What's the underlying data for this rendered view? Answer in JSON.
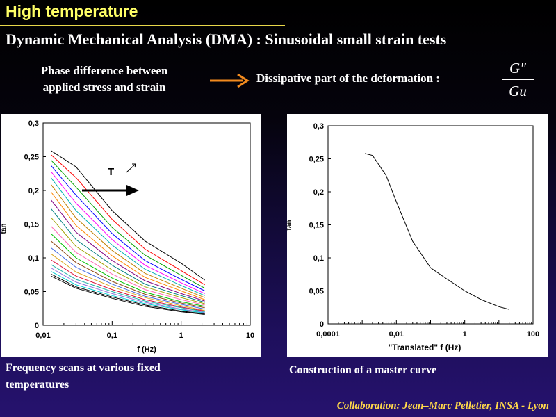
{
  "title": "High temperature",
  "subtitle": "Dynamic Mechanical Analysis (DMA) : Sinusoidal small strain tests",
  "phase_text": {
    "line1": "Phase difference between",
    "line2": "applied stress and strain"
  },
  "dissipative_text": "Dissipative part of the deformation :",
  "fraction": {
    "numerator": "G\"",
    "denominator": "Gu"
  },
  "left_chart": {
    "ylabel": "tan",
    "xlabel": "f (Hz)",
    "xticks": [
      "0,01",
      "0,1",
      "1",
      "10"
    ],
    "yticks": [
      "0",
      "0,05",
      "0,1",
      "0,15",
      "0,2",
      "0,25",
      "0,3"
    ],
    "annotation": "T"
  },
  "right_chart": {
    "ylabel": "tan",
    "xlabel": "\"Translated\" f (Hz)",
    "xticks": [
      "0,0001",
      "0,01",
      "1",
      "100"
    ],
    "yticks": [
      "0",
      "0,05",
      "0,1",
      "0,15",
      "0,2",
      "0,25",
      "0,3"
    ]
  },
  "captions": {
    "left_line1": "Frequency scans at various fixed",
    "left_line2": "temperatures",
    "right": "Construction of a master curve"
  },
  "collaboration": "Collaboration: Jean–Marc Pelletier, INSA - Lyon",
  "chart_data": [
    {
      "type": "line",
      "x_scale": "log",
      "xlim": [
        0.01,
        10
      ],
      "ylim": [
        0,
        0.3
      ],
      "xlabel": "f (Hz)",
      "ylabel": "tan",
      "x": [
        0.013,
        0.03,
        0.1,
        0.3,
        1,
        2.2
      ],
      "series": [
        {
          "values": [
            0.259,
            0.235,
            0.17,
            0.125,
            0.092,
            0.067
          ]
        },
        {
          "values": [
            0.253,
            0.219,
            0.157,
            0.113,
            0.081,
            0.06
          ]
        },
        {
          "values": [
            0.245,
            0.205,
            0.145,
            0.104,
            0.074,
            0.055
          ]
        },
        {
          "values": [
            0.237,
            0.193,
            0.136,
            0.096,
            0.068,
            0.051
          ]
        },
        {
          "values": [
            0.228,
            0.181,
            0.127,
            0.089,
            0.063,
            0.047
          ]
        },
        {
          "values": [
            0.219,
            0.17,
            0.119,
            0.083,
            0.059,
            0.044
          ]
        },
        {
          "values": [
            0.209,
            0.159,
            0.111,
            0.077,
            0.055,
            0.041
          ]
        },
        {
          "values": [
            0.198,
            0.148,
            0.103,
            0.071,
            0.051,
            0.038
          ]
        },
        {
          "values": [
            0.186,
            0.138,
            0.096,
            0.066,
            0.047,
            0.036
          ]
        },
        {
          "values": [
            0.173,
            0.127,
            0.089,
            0.061,
            0.044,
            0.034
          ]
        },
        {
          "values": [
            0.16,
            0.117,
            0.082,
            0.057,
            0.041,
            0.032
          ]
        },
        {
          "values": [
            0.147,
            0.108,
            0.076,
            0.053,
            0.038,
            0.03
          ]
        },
        {
          "values": [
            0.136,
            0.1,
            0.07,
            0.049,
            0.035,
            0.028
          ]
        },
        {
          "values": [
            0.125,
            0.093,
            0.065,
            0.046,
            0.033,
            0.026
          ]
        },
        {
          "values": [
            0.115,
            0.086,
            0.061,
            0.043,
            0.031,
            0.024
          ]
        },
        {
          "values": [
            0.106,
            0.079,
            0.057,
            0.041,
            0.029,
            0.022
          ]
        },
        {
          "values": [
            0.097,
            0.073,
            0.053,
            0.038,
            0.027,
            0.021
          ]
        },
        {
          "values": [
            0.09,
            0.068,
            0.05,
            0.036,
            0.026,
            0.02
          ]
        },
        {
          "values": [
            0.085,
            0.064,
            0.047,
            0.034,
            0.024,
            0.019
          ]
        },
        {
          "values": [
            0.08,
            0.06,
            0.044,
            0.032,
            0.023,
            0.018
          ]
        },
        {
          "values": [
            0.076,
            0.057,
            0.042,
            0.03,
            0.021,
            0.017
          ]
        },
        {
          "values": [
            0.073,
            0.055,
            0.04,
            0.028,
            0.02,
            0.016
          ]
        }
      ]
    },
    {
      "type": "line",
      "x_scale": "log",
      "xlim": [
        0.0001,
        100
      ],
      "ylim": [
        0,
        0.3
      ],
      "xlabel": "\"Translated\" f (Hz)",
      "ylabel": "tan",
      "x": [
        0.0012,
        0.002,
        0.005,
        0.01,
        0.03,
        0.1,
        0.3,
        1,
        3,
        10,
        20
      ],
      "series": [
        {
          "values": [
            0.258,
            0.255,
            0.225,
            0.185,
            0.125,
            0.085,
            0.068,
            0.05,
            0.037,
            0.026,
            0.022
          ]
        }
      ]
    }
  ],
  "colors": {
    "title": "#ffff66",
    "collaboration": "#ffd84a",
    "arrow": "#f28a1e",
    "series": [
      "#000000",
      "#ff0000",
      "#00a000",
      "#0000ff",
      "#ff00ff",
      "#00b0b0",
      "#c08000",
      "#ff8800",
      "#800080",
      "#008080",
      "#a0a000",
      "#ff69b4",
      "#00c000",
      "#8b4513",
      "#4169e1",
      "#daa520",
      "#dc143c",
      "#20b2aa",
      "#9370db",
      "#00ced1",
      "#000000",
      "#000000"
    ]
  }
}
